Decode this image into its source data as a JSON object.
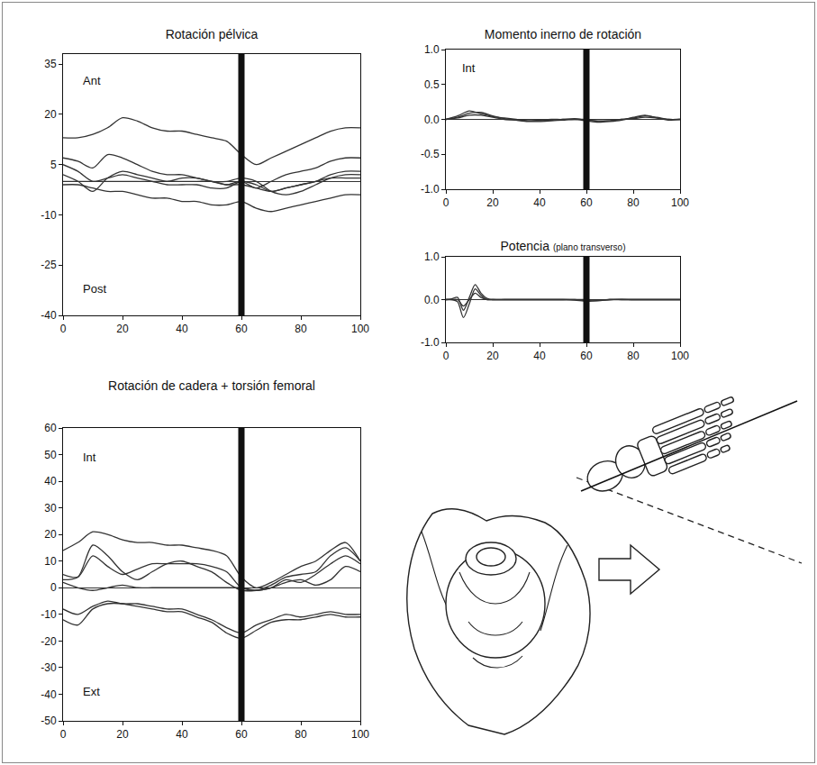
{
  "chart_data": [
    {
      "type": "line",
      "title": "Rotación pélvica",
      "color": "#333333",
      "x": [
        0,
        5,
        10,
        15,
        20,
        25,
        30,
        35,
        40,
        45,
        50,
        55,
        60,
        65,
        70,
        75,
        80,
        85,
        90,
        95,
        100
      ],
      "xlim": [
        0,
        100
      ],
      "xticks": [
        0,
        20,
        40,
        60,
        80,
        100
      ],
      "ylim": [
        -40,
        38
      ],
      "yticks": [
        -40,
        -25,
        -10,
        5,
        20,
        35
      ],
      "annotations": [
        "Ant",
        "Post"
      ],
      "vline": 60,
      "grid": false,
      "series": [
        {
          "values": [
            13,
            13,
            14,
            16,
            19,
            18,
            16,
            15,
            15,
            14,
            13,
            12,
            8,
            5,
            7,
            9,
            11,
            13,
            15,
            16,
            16
          ]
        },
        {
          "values": [
            7,
            6,
            4,
            8,
            7,
            5,
            3,
            2,
            2,
            1,
            0,
            -1,
            0,
            -2,
            0,
            2,
            3,
            4,
            6,
            7,
            7
          ]
        },
        {
          "values": [
            5,
            3,
            0,
            1,
            2,
            1,
            0,
            -1,
            -1,
            -1,
            -2,
            -2,
            0,
            -1,
            -3,
            -2,
            -1,
            0,
            2,
            3,
            3
          ]
        },
        {
          "values": [
            2,
            0,
            -3,
            1,
            3,
            2,
            1,
            0,
            1,
            1,
            0,
            0,
            1,
            0,
            -3,
            -4,
            -3,
            -1,
            1,
            2,
            2
          ]
        },
        {
          "values": [
            -1,
            -1,
            -2,
            -3,
            -3,
            -4,
            -5,
            -5,
            -6,
            -6,
            -7,
            -7,
            -6,
            -8,
            -9,
            -8,
            -7,
            -6,
            -5,
            -4,
            -4
          ]
        },
        {
          "values": [
            0,
            0,
            0,
            0,
            0,
            0,
            0,
            0,
            0,
            0,
            0,
            -1,
            -1,
            -2,
            -3,
            -2,
            -1,
            0,
            1,
            1,
            1
          ]
        }
      ]
    },
    {
      "type": "line",
      "title": "Momento inerno de rotación",
      "color": "#333333",
      "x": [
        0,
        5,
        10,
        15,
        20,
        25,
        30,
        35,
        40,
        45,
        50,
        55,
        60,
        65,
        70,
        75,
        80,
        85,
        90,
        95,
        100
      ],
      "xlim": [
        0,
        100
      ],
      "xticks": [
        0,
        20,
        40,
        60,
        80,
        100
      ],
      "ylim": [
        -1,
        1
      ],
      "yticks": [
        {
          "value": -1,
          "label": "-1.0"
        },
        {
          "value": -0.5,
          "label": "-0.5"
        },
        {
          "value": 0,
          "label": "0.0"
        },
        {
          "value": 0.5,
          "label": "0.5"
        },
        {
          "value": 1,
          "label": "1.0"
        }
      ],
      "annotations": [
        "Int"
      ],
      "vline": 60,
      "grid": false,
      "series": [
        {
          "values": [
            0,
            0.05,
            0.12,
            0.08,
            0.04,
            0.02,
            0,
            -0.02,
            -0.02,
            -0.01,
            0,
            0,
            0,
            -0.03,
            -0.02,
            0,
            0.02,
            0.05,
            0.03,
            0,
            0
          ]
        },
        {
          "values": [
            0,
            0.03,
            0.09,
            0.1,
            0.05,
            0.01,
            -0.01,
            -0.03,
            -0.03,
            -0.02,
            -0.01,
            0,
            -0.02,
            -0.04,
            -0.03,
            -0.01,
            0.03,
            0.06,
            0.02,
            -0.01,
            0
          ]
        },
        {
          "values": [
            0,
            0.02,
            0.06,
            0.06,
            0.03,
            0,
            -0.01,
            -0.02,
            -0.01,
            0,
            0,
            0.01,
            -0.01,
            -0.02,
            -0.02,
            0,
            0.01,
            0.03,
            0.02,
            0,
            0
          ]
        }
      ]
    },
    {
      "type": "line",
      "title": "Potencia",
      "subtitle": "(plano transverso)",
      "color": "#333333",
      "x": [
        0,
        2.5,
        5,
        7.5,
        10,
        12.5,
        15,
        17.5,
        20,
        25,
        30,
        35,
        40,
        45,
        50,
        55,
        60,
        65,
        70,
        75,
        80,
        85,
        90,
        95,
        100
      ],
      "xlim": [
        0,
        100
      ],
      "xticks": [
        0,
        20,
        40,
        60,
        80,
        100
      ],
      "ylim": [
        -1,
        1
      ],
      "yticks": [
        {
          "value": -1,
          "label": "-1.0"
        },
        {
          "value": 0,
          "label": "0.0"
        },
        {
          "value": 1,
          "label": "1.0"
        }
      ],
      "vline": 60,
      "grid": false,
      "series": [
        {
          "values": [
            0,
            0,
            -0.05,
            -0.42,
            -0.1,
            0.25,
            0.1,
            0,
            0,
            0,
            0,
            0,
            0,
            0,
            0,
            0,
            -0.02,
            -0.03,
            0,
            0,
            0,
            0,
            0,
            0,
            0
          ]
        },
        {
          "values": [
            0,
            0.02,
            0.05,
            -0.25,
            0.05,
            0.35,
            0.15,
            0.03,
            0,
            0,
            0,
            0,
            0,
            0,
            0,
            -0.01,
            -0.04,
            -0.02,
            0,
            0.01,
            0,
            0,
            0,
            0,
            0
          ]
        },
        {
          "values": [
            0,
            0,
            0,
            -0.15,
            0,
            0.15,
            0.05,
            0,
            0,
            0,
            0,
            0,
            0,
            0,
            0,
            0,
            0,
            -0.01,
            0,
            0,
            0,
            0,
            0,
            0,
            0
          ]
        }
      ]
    },
    {
      "type": "line",
      "title": "Rotación de cadera + torsión femoral",
      "color": "#333333",
      "x": [
        0,
        5,
        10,
        15,
        20,
        25,
        30,
        35,
        40,
        45,
        50,
        55,
        60,
        65,
        70,
        75,
        80,
        85,
        90,
        95,
        100
      ],
      "xlim": [
        0,
        100
      ],
      "xticks": [
        0,
        20,
        40,
        60,
        80,
        100
      ],
      "ylim": [
        -50,
        60
      ],
      "yticks": [
        -50,
        -40,
        -30,
        -20,
        -10,
        0,
        10,
        20,
        30,
        40,
        50,
        60
      ],
      "annotations": [
        "Int",
        "Ext"
      ],
      "vline": 60,
      "grid": false,
      "series": [
        {
          "values": [
            14,
            17,
            21,
            20,
            18,
            17,
            17,
            16,
            16,
            15,
            14,
            12,
            4,
            0,
            2,
            5,
            8,
            10,
            14,
            17,
            10
          ]
        },
        {
          "values": [
            5,
            4,
            12,
            8,
            5,
            7,
            9,
            9,
            9,
            9,
            8,
            6,
            0,
            -1,
            1,
            4,
            5,
            6,
            12,
            15,
            10
          ]
        },
        {
          "values": [
            3,
            4,
            16,
            12,
            6,
            3,
            6,
            9,
            10,
            8,
            6,
            2,
            -1,
            -1,
            0,
            3,
            2,
            5,
            9,
            12,
            9
          ]
        },
        {
          "values": [
            2,
            0,
            -1,
            0,
            1,
            0,
            0,
            0,
            0,
            0,
            0,
            0,
            0,
            -1,
            0,
            2,
            3,
            1,
            3,
            8,
            6
          ]
        },
        {
          "values": [
            -8,
            -10,
            -7,
            -5,
            -6,
            -6,
            -7,
            -8,
            -8,
            -10,
            -12,
            -15,
            -17,
            -14,
            -12,
            -10,
            -11,
            -10,
            -9,
            -10,
            -10
          ]
        },
        {
          "values": [
            -12,
            -14,
            -8,
            -6,
            -6,
            -7,
            -8,
            -9,
            -9,
            -11,
            -13,
            -17,
            -19,
            -16,
            -13,
            -12,
            -12,
            -11,
            -10,
            -11,
            -11
          ]
        }
      ]
    }
  ]
}
